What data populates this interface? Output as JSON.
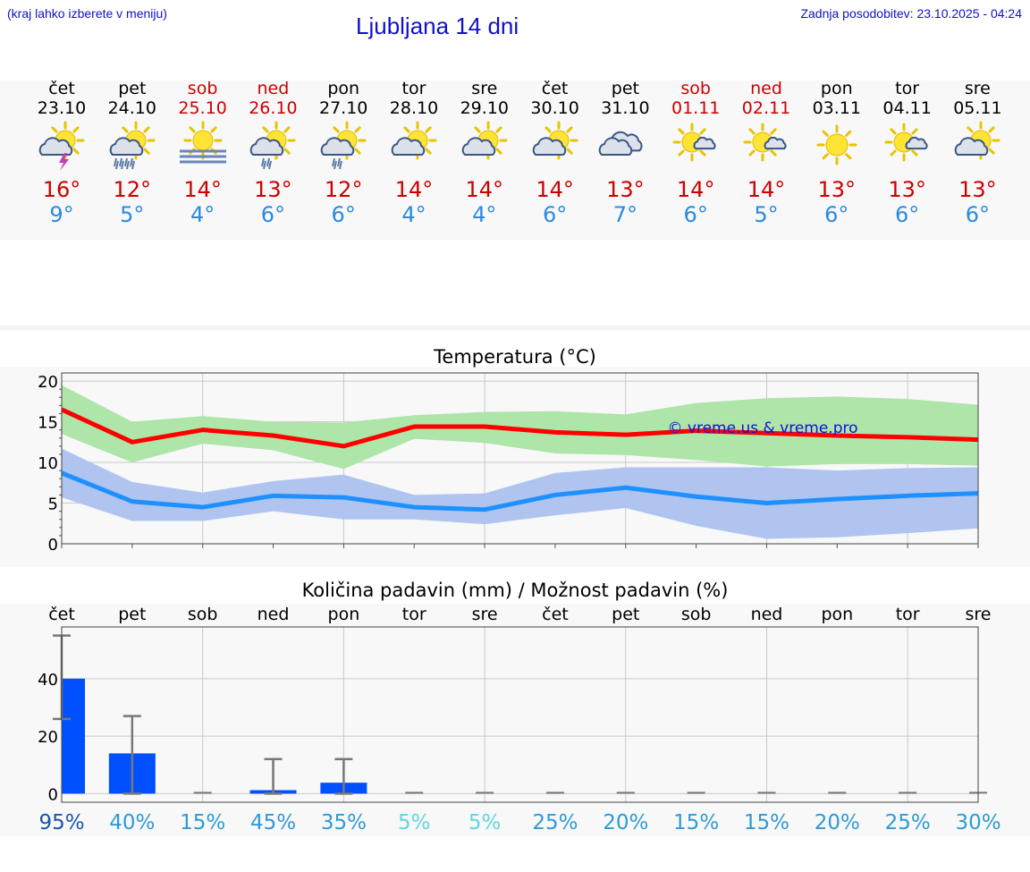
{
  "header": {
    "hint": "(kraj lahko izberete v meniju)",
    "title": "Ljubljana 14 dni",
    "updated": "Zadnja posodobitev: 23.10.2025 - 04:24"
  },
  "colors": {
    "link_blue": "#1010c8",
    "tmax_red": "#cc0000",
    "tmin_blue": "#2a8ae0",
    "max_line": "#ff0000",
    "max_band": "#aee5a8",
    "min_line": "#1e90ff",
    "min_band": "#b0c4f0",
    "overlap_band": "#8bc7a8",
    "precip_bar": "#0050ff"
  },
  "days": [
    {
      "dow": "čet",
      "date": "23.10",
      "weekend": false,
      "icon": "sun-thunder-icon",
      "tmax": "16°",
      "tmin": "9°"
    },
    {
      "dow": "pet",
      "date": "24.10",
      "weekend": false,
      "icon": "sun-cloud-heavy-rain-icon",
      "tmax": "12°",
      "tmin": "5°"
    },
    {
      "dow": "sob",
      "date": "25.10",
      "weekend": true,
      "icon": "sun-fog-icon",
      "tmax": "14°",
      "tmin": "4°"
    },
    {
      "dow": "ned",
      "date": "26.10",
      "weekend": true,
      "icon": "sun-cloud-rain-icon",
      "tmax": "13°",
      "tmin": "6°"
    },
    {
      "dow": "pon",
      "date": "27.10",
      "weekend": false,
      "icon": "sun-cloud-rain-icon",
      "tmax": "12°",
      "tmin": "6°"
    },
    {
      "dow": "tor",
      "date": "28.10",
      "weekend": false,
      "icon": "sun-cloud-icon",
      "tmax": "14°",
      "tmin": "4°"
    },
    {
      "dow": "sre",
      "date": "29.10",
      "weekend": false,
      "icon": "sun-cloud-icon",
      "tmax": "14°",
      "tmin": "4°"
    },
    {
      "dow": "čet",
      "date": "30.10",
      "weekend": false,
      "icon": "sun-cloud-icon",
      "tmax": "14°",
      "tmin": "6°"
    },
    {
      "dow": "pet",
      "date": "31.10",
      "weekend": false,
      "icon": "cloudy-icon",
      "tmax": "13°",
      "tmin": "7°"
    },
    {
      "dow": "sob",
      "date": "01.11",
      "weekend": true,
      "icon": "sun-small-cloud-icon",
      "tmax": "14°",
      "tmin": "6°"
    },
    {
      "dow": "ned",
      "date": "02.11",
      "weekend": true,
      "icon": "sun-small-cloud-icon",
      "tmax": "14°",
      "tmin": "5°"
    },
    {
      "dow": "pon",
      "date": "03.11",
      "weekend": false,
      "icon": "sun-icon",
      "tmax": "13°",
      "tmin": "6°"
    },
    {
      "dow": "tor",
      "date": "04.11",
      "weekend": false,
      "icon": "sun-small-cloud-icon",
      "tmax": "13°",
      "tmin": "6°"
    },
    {
      "dow": "sre",
      "date": "05.11",
      "weekend": false,
      "icon": "sun-cloud-icon",
      "tmax": "13°",
      "tmin": "6°"
    }
  ],
  "chart_data": [
    {
      "type": "line",
      "title": "Temperatura (°C)",
      "watermark": "© vreme.us & vreme.pro",
      "x": [
        "23.10",
        "24.10",
        "25.10",
        "26.10",
        "27.10",
        "28.10",
        "29.10",
        "30.10",
        "31.10",
        "01.11",
        "02.11",
        "03.11",
        "04.11",
        "05.11"
      ],
      "ylim": [
        0,
        21
      ],
      "yticks": [
        0,
        5,
        10,
        15,
        20
      ],
      "grid": true,
      "series": [
        {
          "role": "max",
          "values": [
            16.5,
            12.5,
            14.0,
            13.3,
            12.0,
            14.4,
            14.4,
            13.7,
            13.4,
            13.9,
            13.6,
            13.3,
            13.1,
            12.8
          ],
          "band_low": [
            13.5,
            10.0,
            12.3,
            11.5,
            9.2,
            12.9,
            12.4,
            11.1,
            10.9,
            10.3,
            9.5,
            9.8,
            9.8,
            9.6
          ],
          "band_high": [
            19.5,
            15.0,
            15.7,
            15.0,
            14.9,
            15.8,
            16.2,
            16.3,
            15.9,
            17.3,
            17.9,
            18.1,
            17.8,
            17.1
          ]
        },
        {
          "role": "min",
          "values": [
            8.7,
            5.2,
            4.5,
            5.9,
            5.7,
            4.5,
            4.2,
            6.0,
            6.9,
            5.8,
            5.0,
            5.5,
            5.9,
            6.2
          ],
          "band_low": [
            5.7,
            2.8,
            2.8,
            4.0,
            3.0,
            3.0,
            2.4,
            3.5,
            4.4,
            2.2,
            0.6,
            0.8,
            1.3,
            1.9
          ],
          "band_high": [
            11.7,
            7.6,
            6.3,
            7.7,
            8.5,
            6.0,
            6.2,
            8.7,
            9.4,
            9.4,
            9.4,
            9.0,
            9.3,
            9.4
          ]
        }
      ]
    },
    {
      "type": "bar",
      "title": "Količina padavin (mm) / Možnost padavin (%)",
      "categories": [
        "čet",
        "pet",
        "sob",
        "ned",
        "pon",
        "tor",
        "sre",
        "čet",
        "pet",
        "sob",
        "ned",
        "pon",
        "tor",
        "sre"
      ],
      "values": [
        40,
        14,
        0,
        1.2,
        3.8,
        0,
        0,
        0,
        0,
        0,
        0,
        0,
        0,
        0
      ],
      "error_low": [
        26,
        0,
        0,
        0,
        0,
        0,
        0,
        0,
        0,
        0,
        0,
        0,
        0,
        0
      ],
      "error_high": [
        55,
        27,
        0,
        12,
        12,
        0,
        0,
        0,
        0,
        0,
        0,
        0,
        0,
        0
      ],
      "ylim": [
        -3,
        58
      ],
      "yticks": [
        0,
        20,
        40
      ],
      "grid": true,
      "probability": [
        "95%",
        "40%",
        "15%",
        "45%",
        "35%",
        "5%",
        "5%",
        "25%",
        "20%",
        "15%",
        "15%",
        "20%",
        "25%",
        "30%"
      ],
      "probability_colors": [
        "#1855b0",
        "#2e9ad8",
        "#2e9ad8",
        "#2e9ad8",
        "#2e9ad8",
        "#5fd6e0",
        "#5fd6e0",
        "#2e9ad8",
        "#2e9ad8",
        "#2e9ad8",
        "#2e9ad8",
        "#2e9ad8",
        "#2e9ad8",
        "#2e9ad8"
      ]
    }
  ]
}
